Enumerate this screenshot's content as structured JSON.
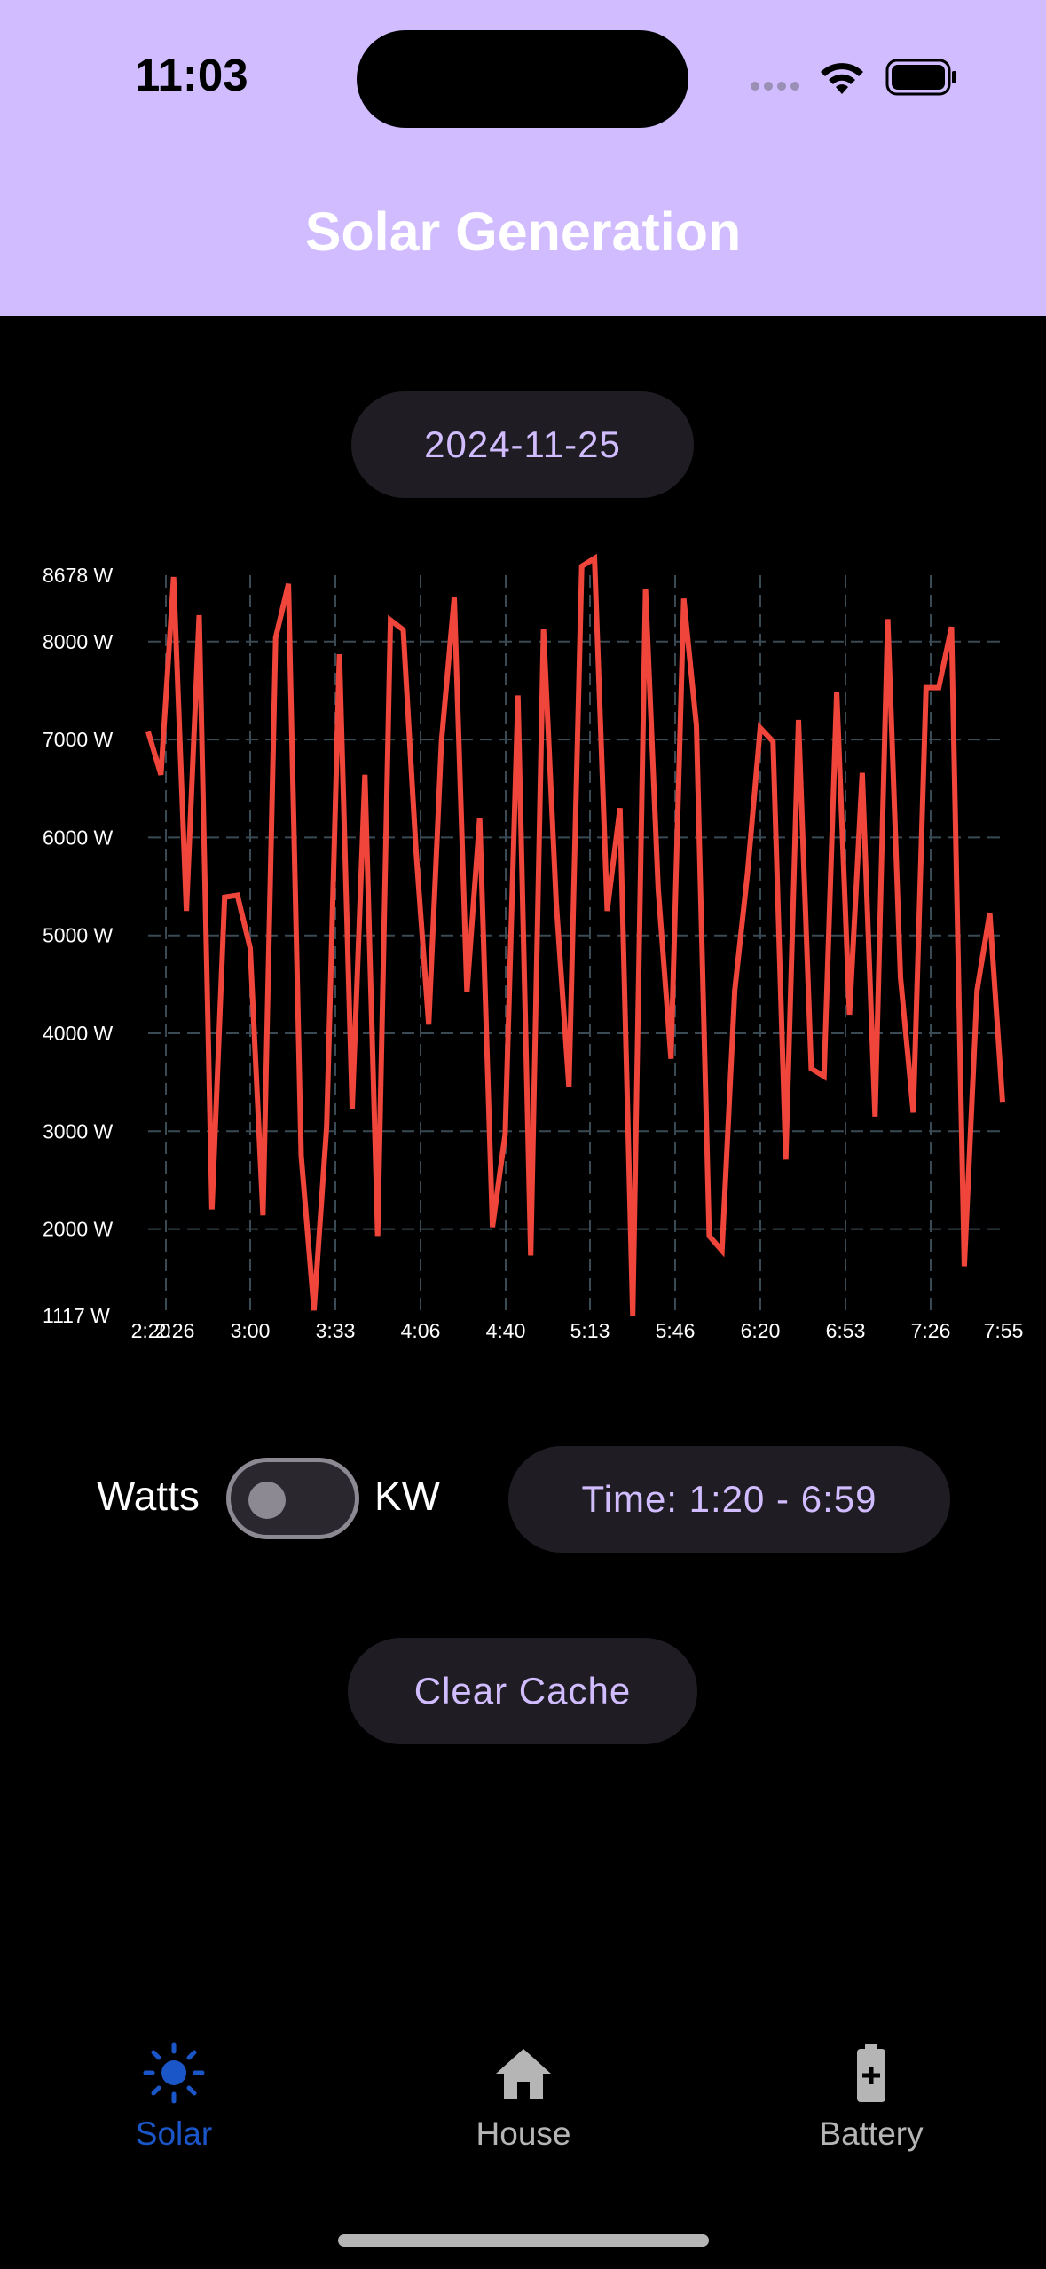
{
  "status_bar": {
    "time": "11:03"
  },
  "header": {
    "title": "Solar Generation"
  },
  "date_button": {
    "label": "2024-11-25"
  },
  "chart_data": {
    "type": "line",
    "y_unit": "W",
    "ylim": [
      1117,
      8678
    ],
    "y_tick_labels": [
      "8678 W",
      "8000 W",
      "7000 W",
      "6000 W",
      "5000 W",
      "4000 W",
      "3000 W",
      "2000 W",
      "1117 W"
    ],
    "y_ticks": [
      8678,
      8000,
      7000,
      6000,
      5000,
      4000,
      3000,
      2000,
      1117
    ],
    "x_tick_labels": [
      "2:20",
      "2:26",
      "3:00",
      "3:33",
      "4:06",
      "4:40",
      "5:13",
      "5:46",
      "6:20",
      "6:53",
      "7:26",
      "7:55"
    ],
    "grid": true,
    "series_color": "#f0453a",
    "series": [
      {
        "values": [
          7080,
          6640,
          8660,
          5250,
          8270,
          2200,
          5390,
          5410,
          4870,
          2140,
          8040,
          8590,
          2750,
          1170,
          3050,
          7870,
          3230,
          6640,
          1930,
          8220,
          8120,
          5880,
          4090,
          6980,
          8450,
          4420,
          6200,
          2020,
          2970,
          7450,
          1730,
          8130,
          5340,
          3450,
          8770,
          8850,
          5250,
          6300,
          1117,
          8540,
          5470,
          3740,
          8440,
          7140,
          1930,
          1780,
          4440,
          5630,
          7120,
          6980,
          2710,
          7200,
          3640,
          3560,
          7480,
          4190,
          6660,
          3150,
          8230,
          4570,
          3190,
          7530,
          7530,
          8150,
          1620,
          4440,
          5230,
          3300
        ]
      }
    ]
  },
  "unit_toggle": {
    "left_label": "Watts",
    "right_label": "KW",
    "state": "off"
  },
  "time_range_button": {
    "label": "Time: 1:20 - 6:59"
  },
  "clear_cache_button": {
    "label": "Clear Cache"
  },
  "bottom_nav": {
    "active_color": "#1a56c8",
    "inactive_color": "#b5b5b5",
    "items": [
      {
        "label": "Solar",
        "icon": "sun-icon",
        "active": true
      },
      {
        "label": "House",
        "icon": "house-icon",
        "active": false
      },
      {
        "label": "Battery",
        "icon": "battery-icon",
        "active": false
      }
    ]
  }
}
